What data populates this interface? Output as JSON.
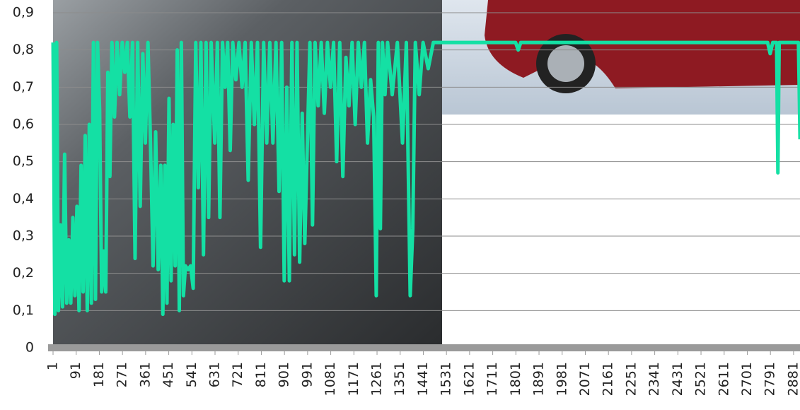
{
  "chart_data": {
    "type": "line",
    "x": [
      1,
      8,
      15,
      22,
      30,
      38,
      46,
      54,
      62,
      70,
      78,
      86,
      94,
      102,
      110,
      118,
      126,
      134,
      142,
      150,
      158,
      166,
      174,
      182,
      190,
      198,
      206,
      214,
      222,
      230,
      240,
      250,
      260,
      270,
      280,
      290,
      300,
      310,
      320,
      330,
      340,
      350,
      360,
      370,
      380,
      390,
      400,
      410,
      420,
      428,
      436,
      444,
      452,
      460,
      468,
      476,
      484,
      492,
      500,
      508,
      516,
      526,
      536,
      546,
      556,
      566,
      576,
      586,
      596,
      606,
      616,
      630,
      640,
      650,
      660,
      670,
      680,
      690,
      700,
      712,
      724,
      736,
      748,
      760,
      772,
      784,
      796,
      808,
      820,
      832,
      844,
      856,
      868,
      880,
      890,
      900,
      910,
      920,
      930,
      940,
      950,
      960,
      970,
      980,
      990,
      1000,
      1010,
      1020,
      1032,
      1044,
      1056,
      1068,
      1080,
      1092,
      1104,
      1116,
      1128,
      1140,
      1152,
      1164,
      1176,
      1188,
      1200,
      1212,
      1224,
      1236,
      1248,
      1258,
      1266,
      1274,
      1282,
      1292,
      1302,
      1320,
      1340,
      1360,
      1375,
      1390,
      1400,
      1410,
      1425,
      1440,
      1460,
      1480,
      1600,
      1800,
      1810,
      1820,
      2000,
      2200,
      2500,
      2780,
      2790,
      2800,
      2815,
      2820,
      2825,
      2900,
      2906
    ],
    "series": [
      {
        "color": "#14e0a4",
        "values": [
          0.82,
          0.09,
          0.82,
          0.1,
          0.33,
          0.11,
          0.52,
          0.12,
          0.29,
          0.12,
          0.35,
          0.14,
          0.38,
          0.1,
          0.49,
          0.15,
          0.57,
          0.1,
          0.6,
          0.12,
          0.82,
          0.13,
          0.82,
          0.64,
          0.15,
          0.26,
          0.15,
          0.74,
          0.46,
          0.82,
          0.62,
          0.82,
          0.68,
          0.82,
          0.74,
          0.82,
          0.62,
          0.82,
          0.24,
          0.82,
          0.38,
          0.79,
          0.55,
          0.82,
          0.55,
          0.22,
          0.58,
          0.21,
          0.49,
          0.09,
          0.49,
          0.12,
          0.67,
          0.18,
          0.6,
          0.22,
          0.8,
          0.1,
          0.82,
          0.14,
          0.22,
          0.21,
          0.22,
          0.16,
          0.82,
          0.43,
          0.82,
          0.25,
          0.82,
          0.35,
          0.82,
          0.55,
          0.82,
          0.35,
          0.82,
          0.7,
          0.82,
          0.53,
          0.82,
          0.72,
          0.82,
          0.7,
          0.82,
          0.45,
          0.82,
          0.6,
          0.82,
          0.27,
          0.82,
          0.55,
          0.82,
          0.55,
          0.82,
          0.42,
          0.82,
          0.18,
          0.7,
          0.18,
          0.82,
          0.25,
          0.82,
          0.23,
          0.63,
          0.28,
          0.55,
          0.82,
          0.33,
          0.82,
          0.65,
          0.82,
          0.63,
          0.82,
          0.7,
          0.82,
          0.5,
          0.82,
          0.46,
          0.78,
          0.65,
          0.82,
          0.6,
          0.82,
          0.7,
          0.82,
          0.55,
          0.72,
          0.62,
          0.14,
          0.82,
          0.32,
          0.82,
          0.68,
          0.82,
          0.68,
          0.82,
          0.55,
          0.82,
          0.14,
          0.32,
          0.82,
          0.68,
          0.82,
          0.75,
          0.82,
          0.82,
          0.82,
          0.8,
          0.82,
          0.82,
          0.82,
          0.82,
          0.82,
          0.79,
          0.82,
          0.82,
          0.47,
          0.82,
          0.82,
          0.56
        ]
      }
    ],
    "xlim": [
      1,
      2906
    ],
    "xticks": [
      1,
      91,
      181,
      271,
      361,
      451,
      541,
      631,
      721,
      811,
      901,
      991,
      1081,
      1171,
      1261,
      1351,
      1441,
      1531,
      1621,
      1711,
      1801,
      1891,
      1981,
      2071,
      2161,
      2251,
      2341,
      2431,
      2521,
      2611,
      2701,
      2791,
      2881
    ],
    "ylim": [
      0,
      0.9
    ],
    "yticks": [
      0,
      {
        "value": 0.1,
        "label": "0,1"
      },
      {
        "value": 0.2,
        "label": "0,2"
      },
      {
        "value": 0.3,
        "label": "0,3"
      },
      {
        "value": 0.4,
        "label": "0,4"
      },
      {
        "value": 0.5,
        "label": "0,5"
      },
      {
        "value": 0.6,
        "label": "0,6"
      },
      {
        "value": 0.7,
        "label": "0,7"
      },
      {
        "value": 0.8,
        "label": "0,8"
      },
      {
        "value": 0.9,
        "label": "0,9"
      }
    ],
    "grid": true
  }
}
